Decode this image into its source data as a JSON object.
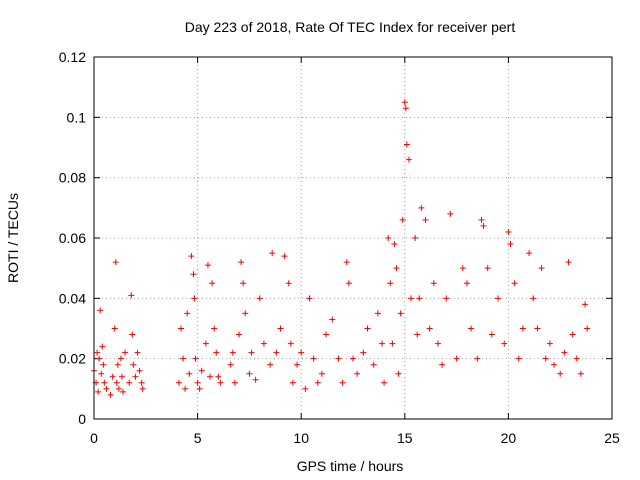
{
  "chart_data": {
    "type": "scatter",
    "title": "Day 223 of 2018, Rate Of TEC Index for receiver pert",
    "xlabel": "GPS time / hours",
    "ylabel": "ROTI / TECUs",
    "xlim": [
      0,
      25
    ],
    "ylim": [
      0,
      0.12
    ],
    "xticks": [
      0,
      5,
      10,
      15,
      20,
      25
    ],
    "xtick_labels": [
      "0",
      "5",
      "10",
      "15",
      "20",
      "25"
    ],
    "yticks": [
      0,
      0.02,
      0.04,
      0.06,
      0.08,
      0.1,
      0.12
    ],
    "ytick_labels": [
      "0",
      "0.02",
      "0.04",
      "0.06",
      "0.08",
      "0.1",
      "0.12"
    ],
    "grid": true,
    "marker": "+",
    "color": "#ff0000",
    "series": [
      {
        "x": [
          0.0,
          0.1,
          0.15,
          0.2,
          0.25,
          0.3,
          0.35,
          0.4,
          0.45,
          0.5,
          0.6,
          0.8,
          0.9,
          1.0,
          1.05,
          1.1,
          1.15,
          1.2,
          1.3,
          1.35,
          1.4,
          1.5,
          1.7,
          1.8,
          1.85,
          1.9,
          2.0,
          2.1,
          2.2,
          2.3,
          2.35,
          4.1,
          4.2,
          4.3,
          4.4,
          4.5,
          4.6,
          4.7,
          4.8,
          4.85,
          4.9,
          5.0,
          5.1,
          5.2,
          5.4,
          5.5,
          5.6,
          5.7,
          5.8,
          5.9,
          6.0,
          6.1,
          6.6,
          6.7,
          6.8,
          7.0,
          7.1,
          7.2,
          7.3,
          7.5,
          7.6,
          7.8,
          8.0,
          8.2,
          8.5,
          8.6,
          8.8,
          9.0,
          9.2,
          9.4,
          9.5,
          9.6,
          9.8,
          10.0,
          10.2,
          10.4,
          10.6,
          10.8,
          11.0,
          11.2,
          11.5,
          11.8,
          12.0,
          12.2,
          12.3,
          12.5,
          12.7,
          13.0,
          13.2,
          13.5,
          13.7,
          13.9,
          14.0,
          14.2,
          14.3,
          14.4,
          14.5,
          14.6,
          14.7,
          14.8,
          14.9,
          15.0,
          15.05,
          15.1,
          15.2,
          15.3,
          15.5,
          15.6,
          15.7,
          15.8,
          16.0,
          16.2,
          16.4,
          16.6,
          16.8,
          17.0,
          17.2,
          17.5,
          17.8,
          18.0,
          18.2,
          18.5,
          18.7,
          18.8,
          19.0,
          19.2,
          19.5,
          19.8,
          20.0,
          20.1,
          20.3,
          20.5,
          20.7,
          21.0,
          21.2,
          21.4,
          21.6,
          21.8,
          22.0,
          22.2,
          22.5,
          22.7,
          22.9,
          23.1,
          23.3,
          23.5,
          23.7,
          23.8
        ],
        "y": [
          0.016,
          0.012,
          0.022,
          0.009,
          0.02,
          0.036,
          0.015,
          0.024,
          0.018,
          0.012,
          0.01,
          0.008,
          0.014,
          0.03,
          0.052,
          0.012,
          0.018,
          0.01,
          0.02,
          0.014,
          0.009,
          0.022,
          0.012,
          0.041,
          0.028,
          0.018,
          0.014,
          0.022,
          0.016,
          0.012,
          0.01,
          0.012,
          0.03,
          0.02,
          0.01,
          0.035,
          0.015,
          0.054,
          0.048,
          0.04,
          0.02,
          0.012,
          0.01,
          0.016,
          0.025,
          0.051,
          0.014,
          0.045,
          0.03,
          0.022,
          0.014,
          0.012,
          0.018,
          0.022,
          0.012,
          0.028,
          0.052,
          0.045,
          0.035,
          0.015,
          0.022,
          0.013,
          0.04,
          0.025,
          0.018,
          0.055,
          0.022,
          0.03,
          0.054,
          0.045,
          0.025,
          0.012,
          0.018,
          0.022,
          0.01,
          0.04,
          0.02,
          0.012,
          0.015,
          0.028,
          0.033,
          0.02,
          0.012,
          0.052,
          0.045,
          0.02,
          0.015,
          0.022,
          0.03,
          0.018,
          0.035,
          0.025,
          0.012,
          0.06,
          0.045,
          0.025,
          0.058,
          0.05,
          0.015,
          0.035,
          0.066,
          0.105,
          0.103,
          0.091,
          0.086,
          0.04,
          0.06,
          0.028,
          0.04,
          0.07,
          0.066,
          0.03,
          0.045,
          0.025,
          0.018,
          0.04,
          0.068,
          0.02,
          0.05,
          0.045,
          0.03,
          0.02,
          0.066,
          0.064,
          0.05,
          0.028,
          0.04,
          0.025,
          0.062,
          0.058,
          0.045,
          0.02,
          0.03,
          0.055,
          0.04,
          0.03,
          0.05,
          0.02,
          0.025,
          0.018,
          0.015,
          0.022,
          0.052,
          0.028,
          0.02,
          0.015,
          0.038,
          0.03
        ]
      }
    ]
  }
}
